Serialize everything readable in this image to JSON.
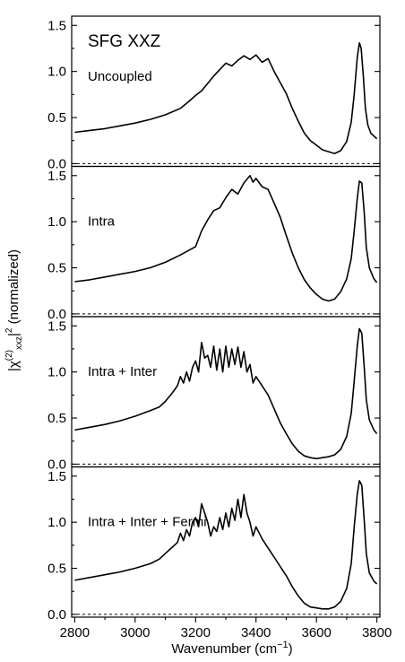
{
  "chart_data": {
    "type": "line",
    "title": "SFG XXZ",
    "xlabel": "Wavenumber (cm",
    "xlabel_sup": "−1",
    "xlabel_close": ")",
    "ylabel": {
      "pre": "|χ",
      "sup1": "(2)",
      "sub": "xxz",
      "bar": "|",
      "sup2": "2",
      "post": " (normalized)"
    },
    "xlim": [
      2790,
      3810
    ],
    "ylim": [
      -0.03,
      1.6
    ],
    "x_ticks": [
      2800,
      3000,
      3200,
      3400,
      3600,
      3800
    ],
    "x_tick_labels": [
      "2800",
      "3000",
      "3200",
      "3400",
      "3600",
      "3800"
    ],
    "y_ticks": [
      0.0,
      0.5,
      1.0,
      1.5
    ],
    "y_tick_labels": [
      "0.0",
      "0.5",
      "1.0",
      "1.5"
    ],
    "zero_line": "dashed",
    "grid": false,
    "legend": "none",
    "panels": [
      {
        "name": "Uncoupled",
        "x": [
          2800,
          2850,
          2900,
          2950,
          3000,
          3050,
          3100,
          3150,
          3180,
          3200,
          3220,
          3240,
          3260,
          3280,
          3300,
          3320,
          3340,
          3360,
          3380,
          3400,
          3420,
          3440,
          3460,
          3480,
          3500,
          3520,
          3540,
          3560,
          3580,
          3600,
          3620,
          3640,
          3660,
          3680,
          3700,
          3715,
          3725,
          3735,
          3742,
          3748,
          3755,
          3762,
          3770,
          3780,
          3800
        ],
        "y": [
          0.34,
          0.36,
          0.38,
          0.41,
          0.44,
          0.48,
          0.53,
          0.6,
          0.68,
          0.74,
          0.79,
          0.87,
          0.95,
          1.02,
          1.09,
          1.06,
          1.12,
          1.17,
          1.13,
          1.18,
          1.1,
          1.14,
          1.0,
          0.88,
          0.76,
          0.6,
          0.46,
          0.33,
          0.25,
          0.2,
          0.15,
          0.13,
          0.11,
          0.14,
          0.24,
          0.45,
          0.75,
          1.15,
          1.31,
          1.25,
          0.95,
          0.6,
          0.42,
          0.33,
          0.27
        ]
      },
      {
        "name": "Intra",
        "x": [
          2800,
          2850,
          2900,
          2950,
          3000,
          3050,
          3100,
          3150,
          3200,
          3220,
          3240,
          3260,
          3280,
          3300,
          3320,
          3340,
          3360,
          3380,
          3390,
          3400,
          3420,
          3440,
          3460,
          3480,
          3500,
          3520,
          3540,
          3560,
          3580,
          3600,
          3620,
          3640,
          3660,
          3680,
          3700,
          3715,
          3725,
          3735,
          3742,
          3750,
          3758,
          3765,
          3775,
          3790,
          3800
        ],
        "y": [
          0.35,
          0.37,
          0.4,
          0.43,
          0.46,
          0.5,
          0.56,
          0.64,
          0.73,
          0.9,
          1.02,
          1.12,
          1.15,
          1.26,
          1.35,
          1.3,
          1.42,
          1.5,
          1.43,
          1.47,
          1.38,
          1.35,
          1.2,
          1.05,
          0.85,
          0.66,
          0.5,
          0.37,
          0.28,
          0.21,
          0.16,
          0.14,
          0.16,
          0.24,
          0.38,
          0.6,
          0.9,
          1.25,
          1.44,
          1.42,
          1.1,
          0.72,
          0.5,
          0.38,
          0.34
        ]
      },
      {
        "name": "Intra + Inter",
        "x": [
          2800,
          2850,
          2900,
          2950,
          3000,
          3050,
          3080,
          3100,
          3120,
          3140,
          3150,
          3160,
          3170,
          3180,
          3190,
          3200,
          3210,
          3220,
          3230,
          3240,
          3250,
          3260,
          3270,
          3280,
          3290,
          3300,
          3310,
          3320,
          3330,
          3340,
          3350,
          3360,
          3370,
          3380,
          3390,
          3400,
          3420,
          3440,
          3460,
          3480,
          3500,
          3520,
          3540,
          3560,
          3580,
          3600,
          3620,
          3640,
          3660,
          3680,
          3700,
          3715,
          3725,
          3735,
          3742,
          3750,
          3758,
          3765,
          3775,
          3790,
          3800
        ],
        "y": [
          0.37,
          0.4,
          0.43,
          0.47,
          0.52,
          0.58,
          0.62,
          0.68,
          0.76,
          0.85,
          0.95,
          0.88,
          1.0,
          0.9,
          1.05,
          1.12,
          1.0,
          1.32,
          1.15,
          1.18,
          1.05,
          1.28,
          1.02,
          1.25,
          1.0,
          1.28,
          1.05,
          1.25,
          1.08,
          1.27,
          1.05,
          1.22,
          1.0,
          1.08,
          0.88,
          0.95,
          0.85,
          0.75,
          0.6,
          0.45,
          0.33,
          0.22,
          0.14,
          0.09,
          0.07,
          0.06,
          0.07,
          0.08,
          0.1,
          0.16,
          0.3,
          0.55,
          0.9,
          1.28,
          1.47,
          1.42,
          1.05,
          0.7,
          0.48,
          0.37,
          0.33
        ]
      },
      {
        "name": "Intra + Inter + Fermi",
        "x": [
          2800,
          2850,
          2900,
          2950,
          3000,
          3050,
          3080,
          3100,
          3120,
          3140,
          3150,
          3160,
          3170,
          3180,
          3190,
          3200,
          3210,
          3220,
          3230,
          3240,
          3250,
          3260,
          3270,
          3280,
          3290,
          3300,
          3310,
          3320,
          3330,
          3340,
          3350,
          3360,
          3370,
          3380,
          3390,
          3400,
          3420,
          3440,
          3460,
          3480,
          3500,
          3520,
          3540,
          3560,
          3580,
          3600,
          3620,
          3640,
          3660,
          3680,
          3700,
          3715,
          3725,
          3735,
          3742,
          3750,
          3758,
          3765,
          3775,
          3790,
          3800
        ],
        "y": [
          0.37,
          0.4,
          0.43,
          0.46,
          0.5,
          0.55,
          0.6,
          0.66,
          0.72,
          0.78,
          0.88,
          0.8,
          0.92,
          0.85,
          1.0,
          1.05,
          0.95,
          1.2,
          1.1,
          1.0,
          0.85,
          0.95,
          0.9,
          1.05,
          0.92,
          1.1,
          0.95,
          1.15,
          1.02,
          1.25,
          1.05,
          1.3,
          1.1,
          1.0,
          0.85,
          0.95,
          0.82,
          0.72,
          0.62,
          0.52,
          0.42,
          0.3,
          0.2,
          0.12,
          0.08,
          0.07,
          0.06,
          0.06,
          0.08,
          0.14,
          0.28,
          0.55,
          0.95,
          1.3,
          1.45,
          1.4,
          1.02,
          0.66,
          0.45,
          0.36,
          0.33
        ]
      }
    ]
  }
}
